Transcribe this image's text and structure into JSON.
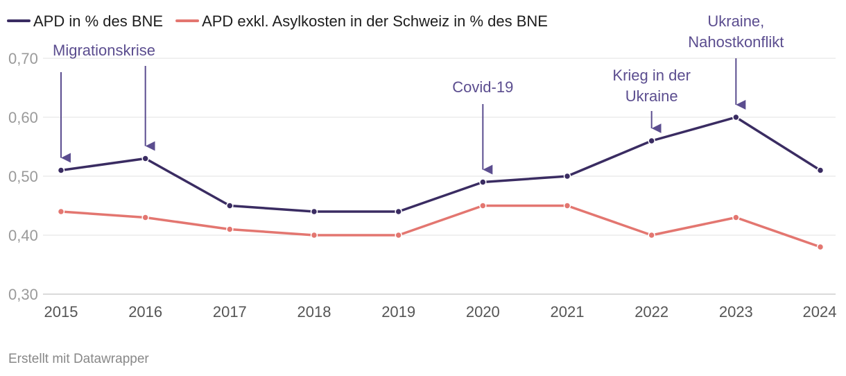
{
  "chart_data": {
    "type": "line",
    "categories": [
      "2015",
      "2016",
      "2017",
      "2018",
      "2019",
      "2020",
      "2021",
      "2022",
      "2023",
      "2024"
    ],
    "series": [
      {
        "name": "APD in % des BNE",
        "color": "#3a2c62",
        "values": [
          0.51,
          0.53,
          0.45,
          0.44,
          0.44,
          0.49,
          0.5,
          0.56,
          0.6,
          0.51
        ]
      },
      {
        "name": "APD exkl. Asylkosten in der Schweiz in % des BNE",
        "color": "#e37670",
        "values": [
          0.44,
          0.43,
          0.41,
          0.4,
          0.4,
          0.45,
          0.45,
          0.4,
          0.43,
          0.38
        ]
      }
    ],
    "ylim": [
      0.3,
      0.7
    ],
    "yticks": [
      "0,70",
      "0,60",
      "0,50",
      "0,40",
      "0,30"
    ],
    "ytick_values": [
      0.7,
      0.6,
      0.5,
      0.4,
      0.3
    ],
    "grid": true,
    "legend_position": "top-left",
    "annotations": [
      {
        "category": "2015",
        "lines": [
          "Migrationskrise"
        ],
        "arrow_to_series": 0
      },
      {
        "category": "2016",
        "lines": [],
        "arrow_to_series": 0
      },
      {
        "category": "2020",
        "lines": [
          "Covid-19"
        ],
        "arrow_to_series": 0
      },
      {
        "category": "2022",
        "lines": [
          "Krieg in der",
          "Ukraine"
        ],
        "arrow_to_series": 0
      },
      {
        "category": "2023",
        "lines": [
          "Ukraine,",
          "Nahostkonflikt"
        ],
        "arrow_to_series": 0
      }
    ],
    "annotation_color": "#5b4d8f"
  },
  "footer": "Erstellt mit Datawrapper"
}
